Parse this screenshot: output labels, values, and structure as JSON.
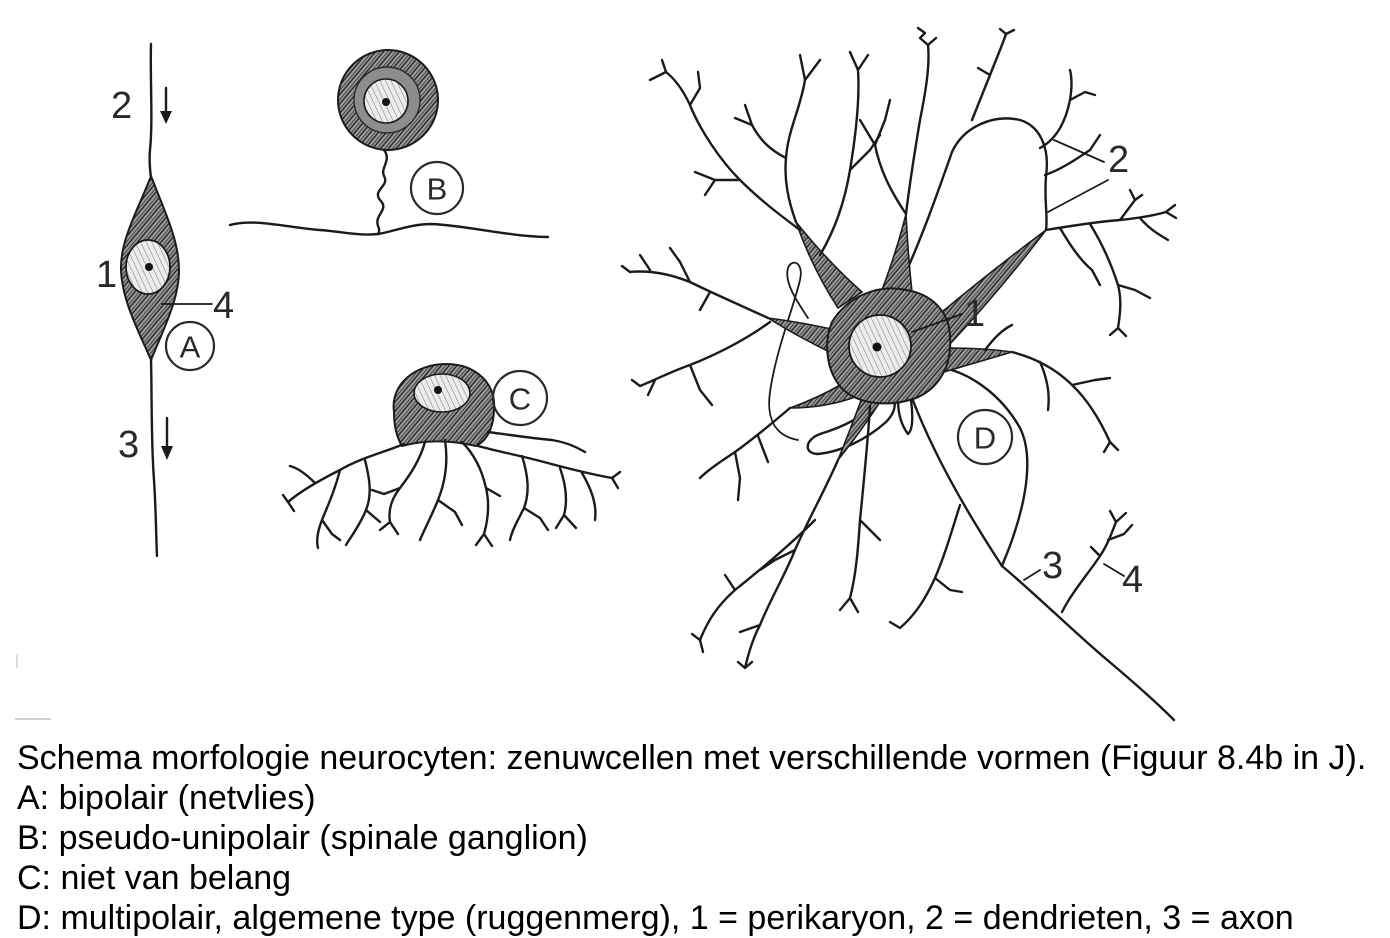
{
  "figure": {
    "cell_a": {
      "letter": "A",
      "n_top": "2",
      "n_body": "1",
      "n_side": "4",
      "n_bottom": "3"
    },
    "cell_b": {
      "letter": "B"
    },
    "cell_c": {
      "letter": "C"
    },
    "cell_d": {
      "letter": "D",
      "n_body": "1",
      "n_dendrites": "2",
      "n_axon": "3",
      "n_branch": "4"
    }
  },
  "caption": {
    "lines": [
      "Schema morfologie neurocyten: zenuwcellen met verschillende vormen (Figuur 8.4b in J).",
      "A: bipolair (netvlies)",
      "B: pseudo-unipolair (spinale ganglion)",
      "C: niet van belang",
      "D: multipolair, algemene type (ruggenmerg), 1 = perikaryon, 2 = dendrieten, 3 = axon"
    ]
  },
  "colors": {
    "ink": "#1b1b1b",
    "background": "#ffffff"
  }
}
